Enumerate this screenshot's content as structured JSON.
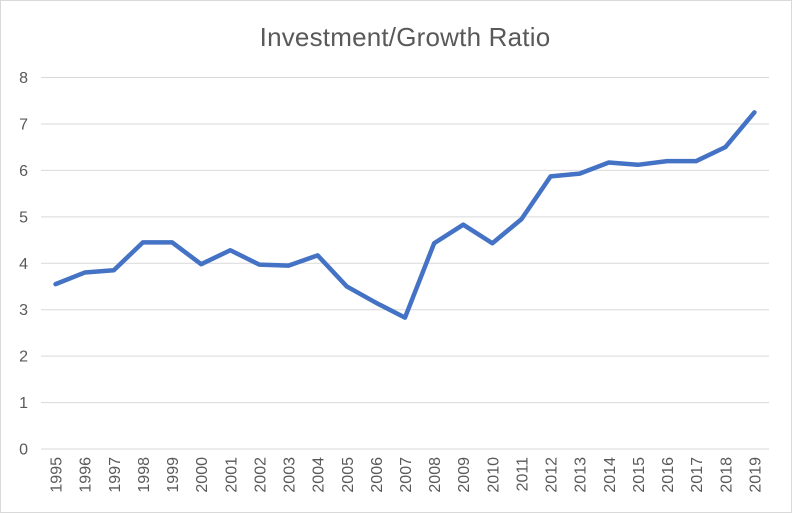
{
  "chart_data": {
    "type": "line",
    "title": "Investment/Growth Ratio",
    "categories": [
      "1995",
      "1996",
      "1997",
      "1998",
      "1999",
      "2000",
      "2001",
      "2002",
      "2003",
      "2004",
      "2005",
      "2006",
      "2007",
      "2008",
      "2009",
      "2010",
      "2011",
      "2012",
      "2013",
      "2014",
      "2015",
      "2016",
      "2017",
      "2018",
      "2019"
    ],
    "series": [
      {
        "name": "Investment/Growth Ratio",
        "values": [
          3.55,
          3.8,
          3.85,
          4.45,
          4.45,
          3.98,
          4.28,
          3.97,
          3.95,
          4.17,
          3.5,
          3.15,
          2.83,
          4.43,
          4.83,
          4.43,
          4.95,
          5.87,
          5.93,
          6.17,
          6.12,
          6.2,
          6.2,
          6.5,
          7.25
        ]
      }
    ],
    "xlabel": "",
    "ylabel": "",
    "ylim": [
      0,
      8
    ],
    "yticks": [
      0,
      1,
      2,
      3,
      4,
      5,
      6,
      7,
      8
    ],
    "x_label_rotation_deg": -90,
    "grid": "horizontal",
    "legend": "none",
    "markers": "none",
    "colors": {
      "line": "#4472C4",
      "grid": "#D9D9D9",
      "axis": "#D9D9D9",
      "text": "#595959",
      "border": "#D9D9D9",
      "background": "#FFFFFF"
    }
  }
}
